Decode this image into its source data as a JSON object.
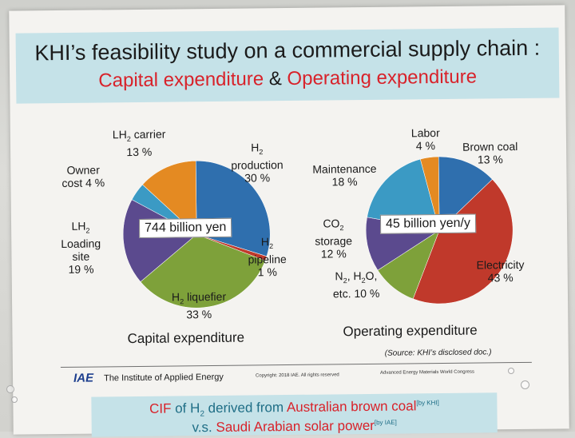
{
  "title": {
    "line1": "KHI’s feasibility study on a commercial supply chain :",
    "line2_part1": "Capital  expenditure",
    "line2_amp": " & ",
    "line2_part2": "Operating expenditure"
  },
  "chart_data": [
    {
      "type": "pie",
      "caption": "Capital expenditure",
      "center_label": "744 billion yen",
      "slices": [
        {
          "label": "H2 production",
          "value": 30,
          "color": "#2f6fae"
        },
        {
          "label": "H2 pipeline",
          "value": 1,
          "color": "#c0392b"
        },
        {
          "label": "H2 liquefier",
          "value": 33,
          "color": "#7ea13a"
        },
        {
          "label": "LH2 Loading site",
          "value": 19,
          "color": "#5b4a8e"
        },
        {
          "label": "Owner cost",
          "value": 4,
          "color": "#3b9ac4"
        },
        {
          "label": "LH2 carrier",
          "value": 13,
          "color": "#e48a22"
        }
      ]
    },
    {
      "type": "pie",
      "caption": "Operating expenditure",
      "center_label": "45 billion yen/y",
      "slices": [
        {
          "label": "Brown coal",
          "value": 13,
          "color": "#2f6fae"
        },
        {
          "label": "Electricity",
          "value": 43,
          "color": "#c0392b"
        },
        {
          "label": "N2, H2O, etc.",
          "value": 10,
          "color": "#7ea13a"
        },
        {
          "label": "CO2 storage",
          "value": 12,
          "color": "#5b4a8e"
        },
        {
          "label": "Maintenance",
          "value": 18,
          "color": "#3b9ac4"
        },
        {
          "label": "Labor",
          "value": 4,
          "color": "#e48a22"
        }
      ]
    }
  ],
  "labels": {
    "capex": {
      "lh2_carrier": "13 %",
      "h2_production_name": "production",
      "h2_production_val": "30 %",
      "owner_name": "Owner",
      "owner_val": "cost 4 %",
      "loading_l1": "Loading",
      "loading_l2": "site",
      "loading_val": "19 %",
      "pipeline_name": "pipeline",
      "pipeline_val": "1 %",
      "liquefier_name": "liquefier",
      "liquefier_val": "33 %"
    },
    "opex": {
      "labor_name": "Labor",
      "labor_val": "4 %",
      "brown_name": "Brown coal",
      "brown_val": "13 %",
      "maint_name": "Maintenance",
      "maint_val": "18 %",
      "co2_name": "storage",
      "co2_val": "12 %",
      "elec_name": "Electricity",
      "elec_val": "43 %",
      "n2_val": "etc. 10 %"
    }
  },
  "source": "(Source: KHI’s disclosed doc.)",
  "footer": {
    "logo": "IAE",
    "institute": "The Institute of Applied Energy",
    "copyright": "Copyright: 2018 IAE.  All rights reserved",
    "congress": "Advanced Energy Materials World Congress"
  },
  "bottom": {
    "cif": "CIF",
    "of": " of H",
    "derived": " derived from ",
    "australian": "Australian brown coal",
    "by_khi": "[by KHI]",
    "vs": "v.s. ",
    "saudi": "Saudi Arabian solar power",
    "by_iae": "[by IAE]"
  }
}
